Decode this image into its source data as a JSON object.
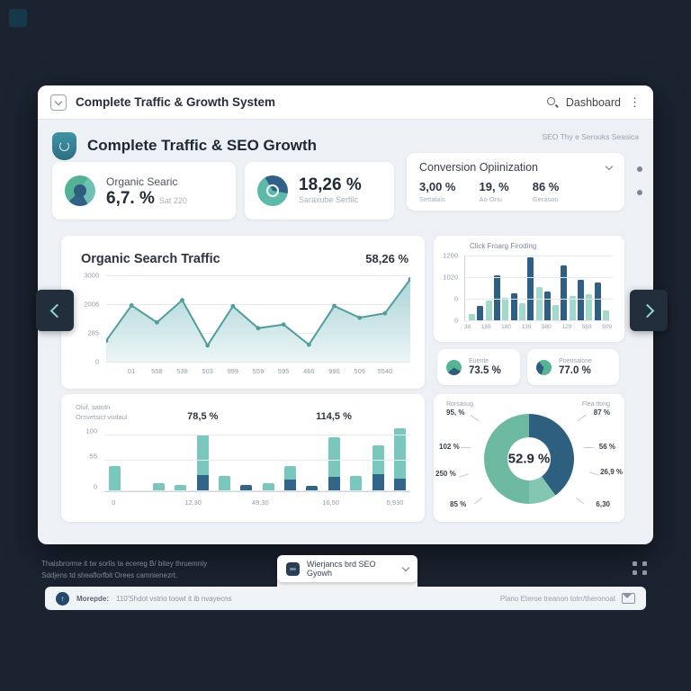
{
  "window": {
    "title": "Complete Traffic & Growth System",
    "nav_label": "Dashboard"
  },
  "header": {
    "title": "Complete Traffic & SEO Growth",
    "meta": "SEO Thy e Serooks Seasica"
  },
  "kpis": {
    "card1": {
      "title": "Organic Searic",
      "value": "6,7. %",
      "sub": "Sat 220"
    },
    "card2": {
      "value": "18,26 %",
      "sub": "Saraxube Serfilc"
    },
    "card3": {
      "title": "Conversion Opiinization",
      "stats": [
        {
          "value": "3,00 %",
          "label": "Settalais"
        },
        {
          "value": "19, %",
          "label": "Ao Onu"
        },
        {
          "value": "86 %",
          "label": "Gerasoo"
        }
      ]
    }
  },
  "mini_stats": [
    {
      "label": "Euente",
      "value": "73.5 %"
    },
    {
      "label": "Poensaione",
      "value": "77.0 %"
    }
  ],
  "chart_data": [
    {
      "type": "area",
      "title": "Organic Search Traffic",
      "annotation": "58,26 %",
      "yticks": [
        "3000",
        "2006",
        "285",
        "0"
      ],
      "categories": [
        "01",
        "558",
        "538",
        "503",
        "999",
        "559",
        "595",
        "466",
        "996",
        "509",
        "5540"
      ],
      "values": [
        800,
        2150,
        1500,
        2350,
        620,
        2120,
        1280,
        1420,
        650,
        2130,
        1680,
        1850,
        3150
      ],
      "ylim": [
        0,
        3300
      ],
      "grid": true,
      "line_color": "#4f9e9b",
      "fill_top": "#9fcdd2",
      "fill_bottom": "#e9f4f5"
    },
    {
      "type": "bar",
      "stacked": true,
      "note_lines": [
        "Oluf, satotn",
        "Orsvetsict vodaul"
      ],
      "annotations": [
        {
          "text": "78,5 %",
          "bar_index": 4
        },
        {
          "text": "114,5 %",
          "bar_index": 10
        }
      ],
      "yticks": [
        "100",
        "55",
        "0"
      ],
      "categories": [
        "0",
        "12,30",
        "49,30",
        "16,50",
        "5,930"
      ],
      "label_pos": [
        3,
        29,
        51,
        74,
        95
      ],
      "series": [
        {
          "name": "dark",
          "color": "#31658a",
          "values": [
            0,
            0,
            0,
            0,
            30,
            0,
            11,
            0,
            21,
            9,
            26,
            0,
            31,
            23
          ]
        },
        {
          "name": "teal",
          "color": "#79c7bd",
          "values": [
            45,
            2,
            14,
            11,
            72,
            28,
            0,
            15,
            24,
            0,
            71,
            28,
            51,
            90
          ]
        }
      ],
      "ylim": [
        0,
        120
      ]
    },
    {
      "type": "bar",
      "title": "Click Froarg Firoding",
      "yticks": [
        "1200",
        "1020",
        "0",
        "0"
      ],
      "categories": [
        "38",
        "159",
        "180",
        "139",
        "580",
        "129",
        "569",
        "909"
      ],
      "values": [
        10,
        22,
        30,
        70,
        35,
        42,
        27,
        97,
        52,
        45,
        24,
        85,
        37,
        63,
        40,
        58,
        15
      ],
      "bar_colors_alternate": [
        "#a2d8cd",
        "#2f5f83"
      ],
      "ylim": [
        0,
        100
      ]
    },
    {
      "type": "pie",
      "center_label": "52.9 %",
      "segments": [
        {
          "name": "dark",
          "value": 40,
          "color": "#2d607f"
        },
        {
          "name": "light",
          "value": 10,
          "color": "#83c6b2"
        },
        {
          "name": "green",
          "value": 50,
          "color": "#6cb8a1"
        }
      ],
      "callouts_left": [
        {
          "title": "Rorsasug",
          "value": "95, %"
        },
        {
          "value": "102 %"
        },
        {
          "value": "250 %"
        },
        {
          "value": "85 %"
        }
      ],
      "callouts_right": [
        {
          "title": "Flea ttong",
          "value": "87 %"
        },
        {
          "value": "56 %"
        },
        {
          "value": "26,9 %"
        },
        {
          "value": "6,30"
        }
      ]
    }
  ],
  "footer": {
    "note_line1": "Thaisbrorme it tw sorlis ta ecereg B/ bitey thruemniy",
    "note_line2": "Sddjens td sheaflorfbit Orees camnienezrt.",
    "dropdown_label": "Wierjancs brd SEO Gyowh",
    "status_bold": "Morepde:",
    "status_text": "110'Shdot vstrio toowt it ib nvayecns",
    "status_right": "Plano Eteroe treanon totrr/theronoat"
  },
  "colors": {
    "accent_teal": "#6fc0b2",
    "accent_dark": "#2f6285",
    "navy_bg": "#1b2330"
  }
}
